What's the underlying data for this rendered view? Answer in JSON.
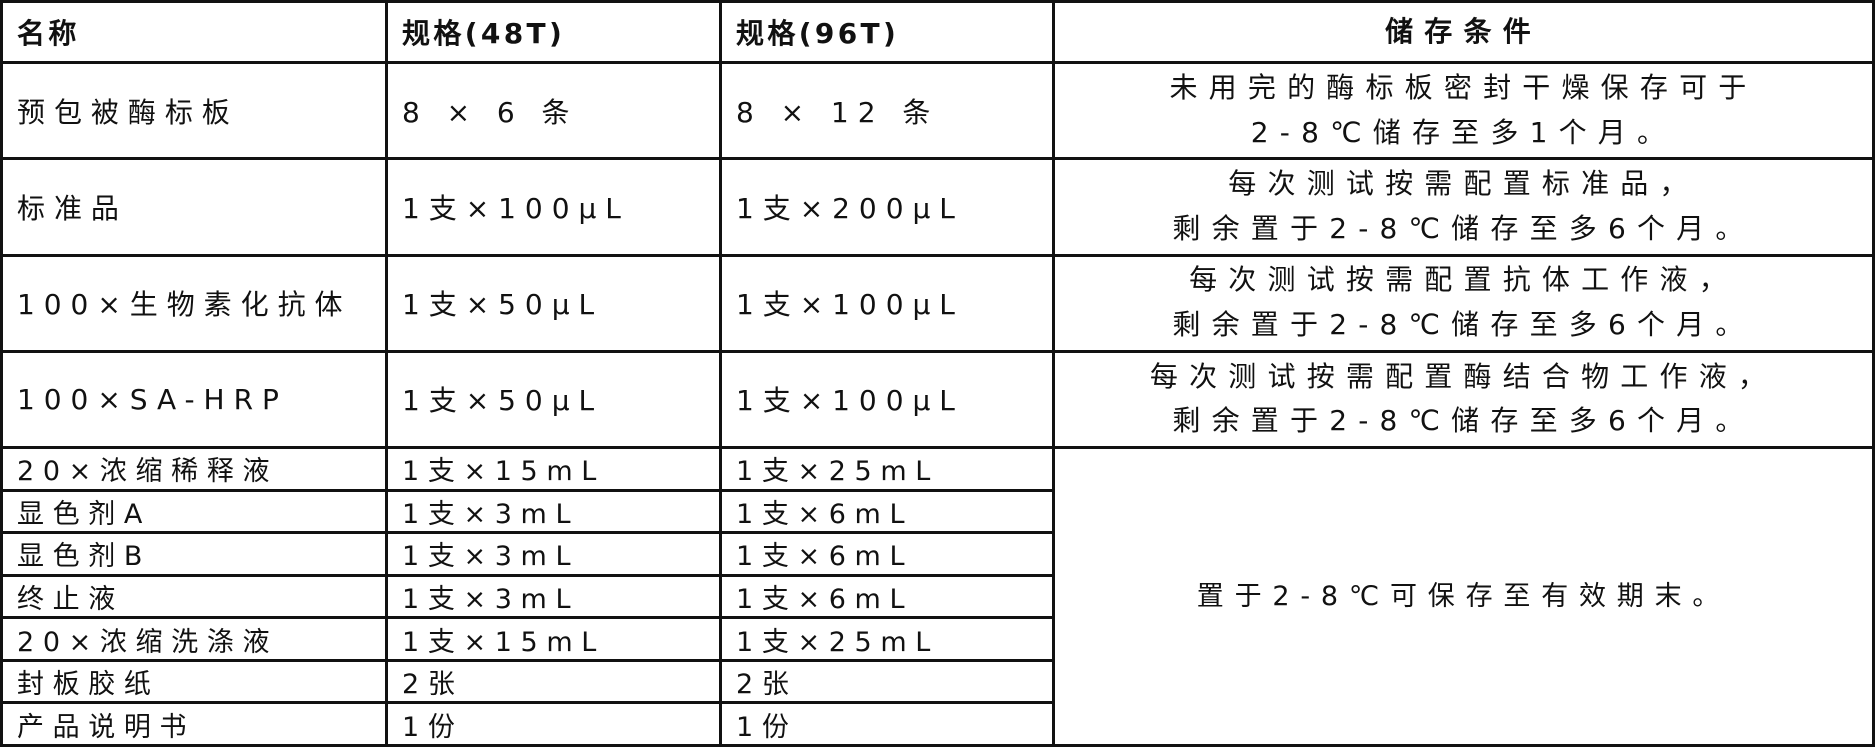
{
  "headers": [
    "名称",
    "规格(48T)",
    "规格(96T)",
    "储存条件"
  ],
  "rows": [
    {
      "name": "预包被酶标板",
      "spec48": "8 × 6 条",
      "spec96": "8 × 12 条",
      "storage": [
        "未用完的酶标板密封干燥保存可于",
        "2-8℃储存至多1个月。"
      ]
    },
    {
      "name": "标准品",
      "spec48": "1支×100μL",
      "spec96": "1支×200μL",
      "storage": [
        "每次测试按需配置标准品，",
        "剩余置于2-8℃储存至多6个月。"
      ]
    },
    {
      "name": "100×生物素化抗体",
      "spec48": "1支×50μL",
      "spec96": "1支×100μL",
      "storage": [
        "每次测试按需配置抗体工作液，",
        "剩余置于2-8℃储存至多6个月。"
      ]
    },
    {
      "name": "100×SA-HRP",
      "spec48": "1支×50μL",
      "spec96": "1支×100μL",
      "storage": [
        "每次测试按需配置酶结合物工作液，",
        "剩余置于2-8℃储存至多6个月。"
      ]
    },
    {
      "name": "20×浓缩稀释液",
      "spec48": "1支×15mL",
      "spec96": "1支×25mL"
    },
    {
      "name": "显色剂A",
      "spec48": "1支×3mL",
      "spec96": "1支×6mL"
    },
    {
      "name": "显色剂B",
      "spec48": "1支×3mL",
      "spec96": "1支×6mL"
    },
    {
      "name": "终止液",
      "spec48": "1支×3mL",
      "spec96": "1支×6mL"
    },
    {
      "name": "20×浓缩洗涤液",
      "spec48": "1支×15mL",
      "spec96": "1支×25mL"
    },
    {
      "name": "封板胶纸",
      "spec48": "2张",
      "spec96": "2张"
    },
    {
      "name": "产品说明书",
      "spec48": "1份",
      "spec96": "1份"
    }
  ],
  "shared_storage": "置于2-8℃可保存至有效期末。"
}
